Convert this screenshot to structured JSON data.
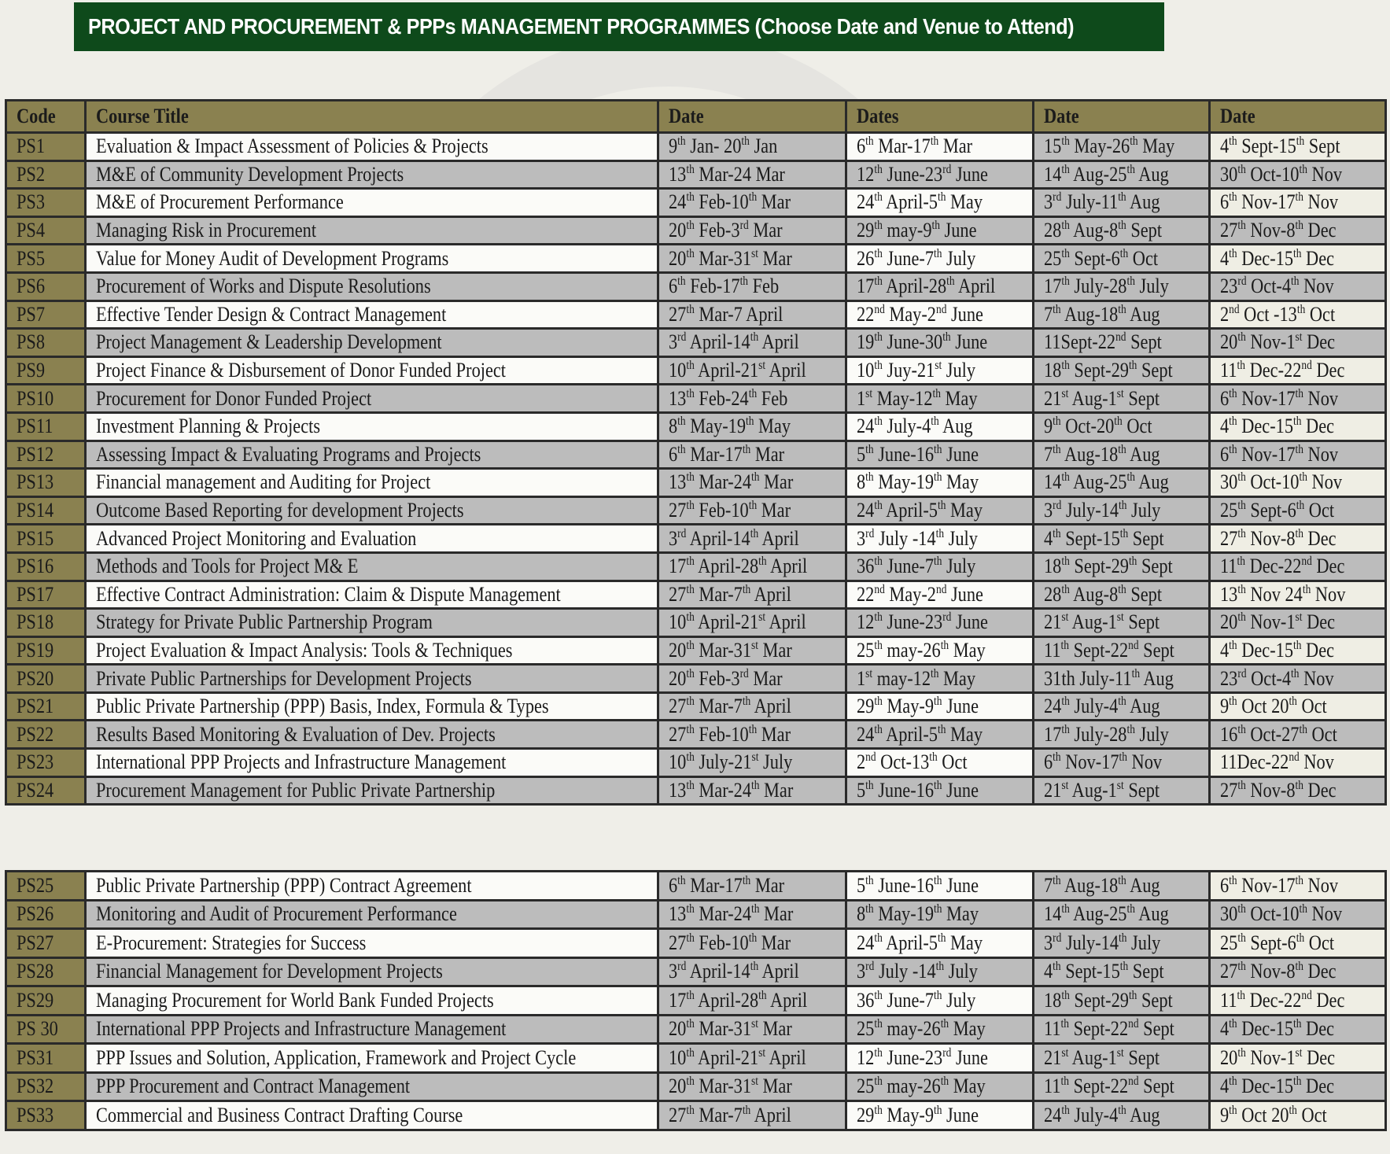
{
  "title": "PROJECT AND PROCUREMENT & PPPs  MANAGEMENT  PROGRAMMES (Choose Date and Venue to Attend)",
  "colors": {
    "title_bg": "#0e4a1b",
    "header_bg": "#8a8150",
    "row_grey": "#bcbcbc",
    "row_light": "#fbfbf8"
  },
  "headers": [
    "Code",
    "Course Title",
    "Date",
    "Dates",
    "Date",
    "Date"
  ],
  "rows": [
    {
      "code": "PS1",
      "title": "Evaluation & Impact Assessment of Policies & Projects",
      "dates": [
        "9th Jan- 20th Jan",
        "6th Mar-17th Mar",
        "15th May-26th May",
        "4th Sept-15th Sept"
      ]
    },
    {
      "code": "PS2",
      "title": "M&E of Community Development Projects",
      "dates": [
        "13th Mar-24 Mar",
        "12th June-23rd June",
        "14th Aug-25th Aug",
        "30th Oct-10th Nov"
      ]
    },
    {
      "code": "PS3",
      "title": "M&E of Procurement Performance",
      "dates": [
        "24th Feb-10th Mar",
        "24th April-5th May",
        "3rd July-11th Aug",
        "6th Nov-17th Nov"
      ]
    },
    {
      "code": "PS4",
      "title": "Managing Risk in Procurement",
      "dates": [
        "20th Feb-3rd Mar",
        "29th may-9th June",
        "28th Aug-8th Sept",
        "27th Nov-8th Dec"
      ]
    },
    {
      "code": "PS5",
      "title": "Value for Money Audit of Development Programs",
      "dates": [
        "20th Mar-31st Mar",
        "26th June-7th July",
        "25th Sept-6th Oct",
        "4th Dec-15th Dec"
      ]
    },
    {
      "code": "PS6",
      "title": "Procurement of Works and Dispute Resolutions",
      "dates": [
        "6th Feb-17th Feb",
        "17th April-28th April",
        "17th July-28th July",
        "23rd Oct-4th Nov"
      ]
    },
    {
      "code": "PS7",
      "title": "Effective Tender Design & Contract Management",
      "dates": [
        "27th Mar-7 April",
        "22nd May-2nd June",
        "7th Aug-18th Aug",
        "2nd Oct -13th Oct"
      ]
    },
    {
      "code": "PS8",
      "title": "Project Management & Leadership Development",
      "dates": [
        "3rd April-14th April",
        "19th June-30th June",
        "11Sept-22nd Sept",
        "20th Nov-1st Dec"
      ]
    },
    {
      "code": "PS9",
      "title": "Project Finance & Disbursement of Donor Funded Project",
      "dates": [
        "10th April-21st April",
        "10th Juy-21st July",
        "18th Sept-29th Sept",
        "11th Dec-22nd Dec"
      ]
    },
    {
      "code": "PS10",
      "title": "Procurement for Donor Funded Project",
      "dates": [
        "13th Feb-24th Feb",
        "1st May-12th May",
        "21st Aug-1st Sept",
        "6th Nov-17th Nov"
      ]
    },
    {
      "code": "PS11",
      "title": "Investment Planning & Projects",
      "dates": [
        "8th May-19th May",
        "24th July-4th Aug",
        "9th Oct-20th Oct",
        "4th Dec-15th Dec"
      ]
    },
    {
      "code": "PS12",
      "title": "Assessing Impact & Evaluating Programs and Projects",
      "dates": [
        "6th Mar-17th Mar",
        "5th June-16th June",
        "7th Aug-18th Aug",
        "6th Nov-17th Nov"
      ]
    },
    {
      "code": "PS13",
      "title": "Financial management and Auditing for Project",
      "dates": [
        "13th Mar-24th Mar",
        "8th May-19th May",
        "14th Aug-25th Aug",
        "30th Oct-10th Nov"
      ]
    },
    {
      "code": "PS14",
      "title": "Outcome Based Reporting for development Projects",
      "dates": [
        "27th Feb-10th Mar",
        "24th April-5th May",
        "3rd July-14th July",
        "25th Sept-6th Oct"
      ]
    },
    {
      "code": "PS15",
      "title": "Advanced Project Monitoring and Evaluation",
      "dates": [
        "3rd April-14th April",
        "3rd July -14th July",
        "4th Sept-15th Sept",
        "27th Nov-8th Dec"
      ]
    },
    {
      "code": "PS16",
      "title": "Methods and Tools for Project M& E",
      "dates": [
        "17th April-28th April",
        "36th June-7th July",
        "18th Sept-29th Sept",
        "11th Dec-22nd Dec"
      ]
    },
    {
      "code": "PS17",
      "title": "Effective Contract Administration: Claim & Dispute Management",
      "dates": [
        "27th Mar-7th April",
        "22nd May-2nd June",
        "28th Aug-8th Sept",
        "13th Nov 24th Nov"
      ]
    },
    {
      "code": "PS18",
      "title": "Strategy for Private Public Partnership Program",
      "dates": [
        "10th April-21st April",
        "12th June-23rd June",
        "21st Aug-1st Sept",
        "20th Nov-1st Dec"
      ]
    },
    {
      "code": "PS19",
      "title": "Project Evaluation & Impact Analysis: Tools & Techniques",
      "dates": [
        "20th Mar-31st Mar",
        "25th may-26th May",
        "11th Sept-22nd Sept",
        "4th Dec-15th Dec"
      ]
    },
    {
      "code": "PS20",
      "title": "Private Public Partnerships for Development Projects",
      "dates": [
        "20th Feb-3rd Mar",
        "1st may-12th May",
        "31th July-11th Aug",
        "23rd Oct-4th Nov"
      ]
    },
    {
      "code": "PS21",
      "title": "Public Private Partnership (PPP) Basis, Index, Formula & Types",
      "dates": [
        "27th Mar-7th April",
        "29th May-9th June",
        "24th July-4th Aug",
        "9th Oct 20th Oct"
      ]
    },
    {
      "code": "PS22",
      "title": "Results Based Monitoring & Evaluation of Dev. Projects",
      "dates": [
        "27th Feb-10th Mar",
        "24th April-5th May",
        "17th July-28th July",
        "16th Oct-27th Oct"
      ]
    },
    {
      "code": "PS23",
      "title": "International PPP Projects and Infrastructure Management",
      "dates": [
        "10th July-21st July",
        "2nd Oct-13th Oct",
        "6th Nov-17th Nov",
        "11Dec-22nd Nov"
      ]
    },
    {
      "code": "PS24",
      "title": "Procurement Management for Public Private Partnership",
      "dates": [
        "13th Mar-24th Mar",
        "5th June-16th June",
        "21st Aug-1st Sept",
        "27th Nov-8th Dec"
      ]
    },
    {
      "code": "PS25",
      "title": "Public Private Partnership (PPP) Contract Agreement",
      "dates": [
        "6th Mar-17th Mar",
        "5th June-16th June",
        "7th Aug-18th Aug",
        "6th Nov-17th Nov"
      ]
    },
    {
      "code": "PS26",
      "title": "Monitoring and Audit of Procurement Performance",
      "dates": [
        "13th Mar-24th Mar",
        "8th May-19th May",
        "14th Aug-25th Aug",
        "30th Oct-10th Nov"
      ]
    },
    {
      "code": "PS27",
      "title": "E-Procurement: Strategies for Success",
      "dates": [
        "27th Feb-10th Mar",
        "24th April-5th May",
        "3rd July-14th July",
        "25th Sept-6th Oct"
      ]
    },
    {
      "code": "PS28",
      "title": "Financial Management for Development Projects",
      "dates": [
        "3rd April-14th April",
        "3rd July -14th July",
        "4th Sept-15th Sept",
        "27th Nov-8th Dec"
      ]
    },
    {
      "code": "PS29",
      "title": "Managing Procurement for World Bank Funded Projects",
      "dates": [
        "17th April-28th April",
        "36th June-7th July",
        "18th Sept-29th Sept",
        "11th Dec-22nd Dec"
      ]
    },
    {
      "code": "PS 30",
      "title": "International PPP Projects and Infrastructure Management",
      "dates": [
        "20th Mar-31st Mar",
        "25th may-26th May",
        "11th Sept-22nd Sept",
        "4th Dec-15th Dec"
      ]
    },
    {
      "code": "PS31",
      "title": "PPP Issues and Solution, Application, Framework and Project Cycle",
      "dates": [
        "10th April-21st April",
        "12th June-23rd June",
        "21st Aug-1st Sept",
        "20th Nov-1st Dec"
      ]
    },
    {
      "code": "PS32",
      "title": "PPP Procurement and Contract Management",
      "dates": [
        "20th Mar-31st Mar",
        "25th may-26th May",
        "11th Sept-22nd Sept",
        "4th Dec-15th Dec"
      ]
    },
    {
      "code": "PS33",
      "title": "Commercial and Business Contract Drafting Course",
      "dates": [
        "27th Mar-7th April",
        "29th May-9th June",
        "24th July-4th Aug",
        "9th Oct 20th Oct"
      ]
    }
  ]
}
